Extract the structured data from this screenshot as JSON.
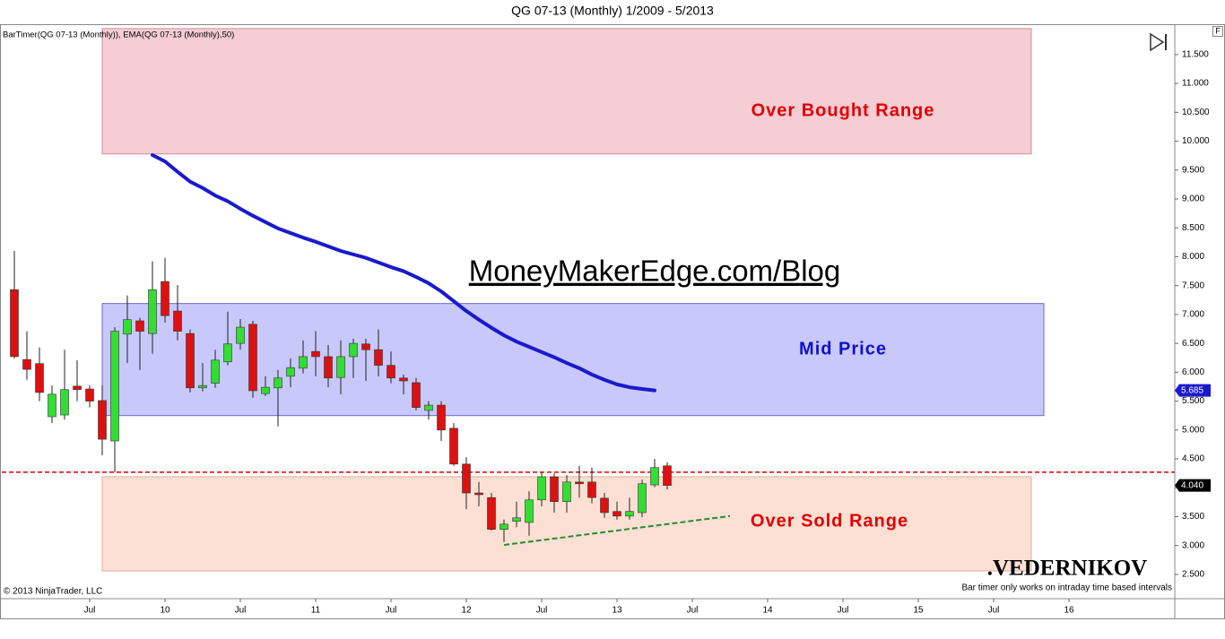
{
  "chart_data": {
    "type": "candlestick",
    "title": "QG 07-13 (Monthly)  1/2009 - 5/2013",
    "indicator_text": "BarTimer(QG 07-13 (Monthly)), EMA(QG 07-13 (Monthly),50)",
    "watermark": "MoneyMakerEdge.com/Blog",
    "signature": ".VEDERNIKOV",
    "footnote": "Bar timer only works on intraday time based intervals",
    "copyright": "© 2013 NinjaTrader, LLC",
    "corner_label": "F",
    "x": [
      "2009-01",
      "2009-02",
      "2009-03",
      "2009-04",
      "2009-05",
      "2009-06",
      "2009-07",
      "2009-08",
      "2009-09",
      "2009-10",
      "2009-11",
      "2009-12",
      "2010-01",
      "2010-02",
      "2010-03",
      "2010-04",
      "2010-05",
      "2010-06",
      "2010-07",
      "2010-08",
      "2010-09",
      "2010-10",
      "2010-11",
      "2010-12",
      "2011-01",
      "2011-02",
      "2011-03",
      "2011-04",
      "2011-05",
      "2011-06",
      "2011-07",
      "2011-08",
      "2011-09",
      "2011-10",
      "2011-11",
      "2011-12",
      "2012-01",
      "2012-02",
      "2012-03",
      "2012-04",
      "2012-05",
      "2012-06",
      "2012-07",
      "2012-08",
      "2012-09",
      "2012-10",
      "2012-11",
      "2012-12",
      "2013-01",
      "2013-02",
      "2013-03",
      "2013-04",
      "2013-05"
    ],
    "open": [
      7.43,
      6.22,
      6.15,
      5.23,
      5.26,
      5.76,
      5.71,
      5.51,
      4.81,
      6.66,
      6.89,
      6.67,
      7.57,
      7.06,
      6.67,
      5.73,
      5.81,
      6.18,
      6.5,
      6.83,
      5.63,
      5.73,
      5.93,
      6.07,
      6.36,
      6.27,
      5.91,
      6.27,
      6.49,
      6.39,
      6.12,
      5.9,
      5.82,
      5.34,
      5.43,
      5.03,
      4.41,
      3.91,
      3.83,
      3.28,
      3.42,
      3.4,
      3.79,
      4.19,
      3.76,
      4.1,
      4.1,
      3.82,
      3.59,
      3.51,
      3.57,
      4.05,
      4.38
    ],
    "high": [
      8.1,
      6.71,
      6.43,
      5.77,
      6.39,
      6.21,
      5.77,
      5.77,
      6.78,
      7.33,
      6.94,
      7.92,
      7.98,
      7.51,
      6.74,
      6.16,
      6.39,
      7.05,
      6.92,
      6.89,
      5.93,
      6.04,
      6.24,
      6.55,
      6.71,
      6.47,
      6.55,
      6.58,
      6.58,
      6.74,
      6.36,
      5.96,
      5.9,
      5.5,
      5.5,
      5.12,
      4.53,
      4.1,
      3.91,
      3.45,
      3.76,
      3.94,
      4.27,
      4.25,
      4.22,
      4.38,
      4.35,
      3.91,
      3.76,
      3.83,
      4.14,
      4.5,
      4.44
    ],
    "low": [
      6.24,
      5.87,
      5.5,
      5.12,
      5.18,
      5.5,
      5.39,
      4.56,
      4.27,
      6.16,
      6.04,
      6.32,
      6.86,
      6.55,
      5.65,
      5.67,
      5.73,
      6.12,
      6.39,
      5.56,
      5.59,
      5.06,
      5.74,
      5.98,
      5.93,
      5.74,
      5.62,
      5.9,
      5.85,
      5.93,
      5.81,
      5.62,
      5.34,
      5.18,
      4.81,
      4.38,
      3.63,
      3.68,
      3.26,
      3.06,
      3.32,
      3.17,
      3.68,
      3.57,
      3.57,
      3.83,
      3.73,
      3.48,
      3.45,
      3.45,
      3.49,
      4.01,
      3.97
    ],
    "close": [
      6.27,
      6.05,
      5.65,
      5.62,
      5.7,
      5.7,
      5.5,
      4.84,
      6.71,
      6.91,
      6.71,
      7.43,
      6.98,
      6.71,
      5.73,
      5.77,
      6.21,
      6.49,
      6.78,
      5.68,
      5.74,
      5.9,
      6.08,
      6.27,
      6.27,
      5.9,
      6.27,
      6.5,
      6.39,
      6.12,
      5.9,
      5.85,
      5.39,
      5.43,
      5.0,
      4.41,
      3.91,
      3.88,
      3.28,
      3.37,
      3.48,
      3.79,
      4.19,
      3.76,
      4.1,
      4.07,
      3.83,
      3.57,
      3.51,
      3.59,
      4.07,
      4.35,
      4.04
    ],
    "up_color": "#33dd33",
    "down_color": "#dd1111",
    "overlays": [
      {
        "type": "line",
        "color": "#1a1acc",
        "values": [
          null,
          null,
          null,
          null,
          null,
          null,
          null,
          null,
          null,
          null,
          null,
          9.76,
          9.65,
          9.47,
          9.3,
          9.19,
          9.06,
          8.96,
          8.83,
          8.71,
          8.6,
          8.49,
          8.41,
          8.33,
          8.26,
          8.18,
          8.1,
          8.04,
          7.98,
          7.9,
          7.82,
          7.75,
          7.65,
          7.54,
          7.4,
          7.23,
          7.06,
          6.91,
          6.77,
          6.64,
          6.53,
          6.44,
          6.35,
          6.26,
          6.16,
          6.07,
          5.96,
          5.87,
          5.79,
          5.74,
          5.71,
          5.685,
          null
        ]
      }
    ],
    "zones": [
      {
        "label": "Over Bought Range",
        "x": [
          "2009-08",
          "2015-10"
        ],
        "ylim": [
          9.78,
          11.95
        ],
        "fill": "#f5cdd4",
        "edge": "#d88b98",
        "text_color": "#e00000"
      },
      {
        "label": "Mid Price",
        "x": [
          "2009-08",
          "2015-11"
        ],
        "ylim": [
          5.25,
          7.19
        ],
        "fill": "#c8c8fa",
        "edge": "#6a6ac8",
        "text_color": "#1010cc"
      },
      {
        "label": "Over Sold Range",
        "x": [
          "2009-08",
          "2015-10"
        ],
        "ylim": [
          2.56,
          4.19
        ],
        "fill": "#fde0d4",
        "edge": "#e2ab96",
        "text_color": "#e00000"
      }
    ],
    "hlines": [
      {
        "value": 4.27,
        "color": "#dd0000"
      }
    ],
    "trendlines": [
      {
        "x": [
          "2012-04",
          "2013-10"
        ],
        "values": [
          3.01,
          3.51
        ],
        "color": "#2a8a2a"
      }
    ],
    "price_markers": [
      {
        "value": 5.685,
        "label": "5.685",
        "color": "#1a1acc"
      },
      {
        "value": 4.04,
        "label": "4.040",
        "color": "#000000"
      }
    ],
    "xlim": [
      "2008-12",
      "2016-09"
    ],
    "xticks": [
      {
        "value": "2009-07",
        "label": "Jul"
      },
      {
        "value": "2010-01",
        "label": "10"
      },
      {
        "value": "2010-07",
        "label": "Jul"
      },
      {
        "value": "2011-01",
        "label": "11"
      },
      {
        "value": "2011-07",
        "label": "Jul"
      },
      {
        "value": "2012-01",
        "label": "12"
      },
      {
        "value": "2012-07",
        "label": "Jul"
      },
      {
        "value": "2013-01",
        "label": "13"
      },
      {
        "value": "2013-07",
        "label": "Jul"
      },
      {
        "value": "2014-01",
        "label": "14"
      },
      {
        "value": "2014-07",
        "label": "Jul"
      },
      {
        "value": "2015-01",
        "label": "15"
      },
      {
        "value": "2015-07",
        "label": "Jul"
      },
      {
        "value": "2016-01",
        "label": "16"
      }
    ],
    "ylim": [
      2.08,
      12.01
    ],
    "yticks": [
      {
        "value": 2.5,
        "label": "2.500"
      },
      {
        "value": 3,
        "label": "3.000"
      },
      {
        "value": 3.5,
        "label": "3.500"
      },
      {
        "value": 4,
        "label": "4.000"
      },
      {
        "value": 4.5,
        "label": "4.500"
      },
      {
        "value": 5,
        "label": "5.000"
      },
      {
        "value": 5.5,
        "label": "5.500"
      },
      {
        "value": 6,
        "label": "6.000"
      },
      {
        "value": 6.5,
        "label": "6.500"
      },
      {
        "value": 7,
        "label": "7.000"
      },
      {
        "value": 7.5,
        "label": "7.500"
      },
      {
        "value": 8,
        "label": "8.000"
      },
      {
        "value": 8.5,
        "label": "8.500"
      },
      {
        "value": 9,
        "label": "9.000"
      },
      {
        "value": 9.5,
        "label": "9.500"
      },
      {
        "value": 10,
        "label": "10.000"
      },
      {
        "value": 10.5,
        "label": "10.500"
      },
      {
        "value": 11,
        "label": "11.000"
      },
      {
        "value": 11.5,
        "label": "11.500"
      }
    ]
  }
}
